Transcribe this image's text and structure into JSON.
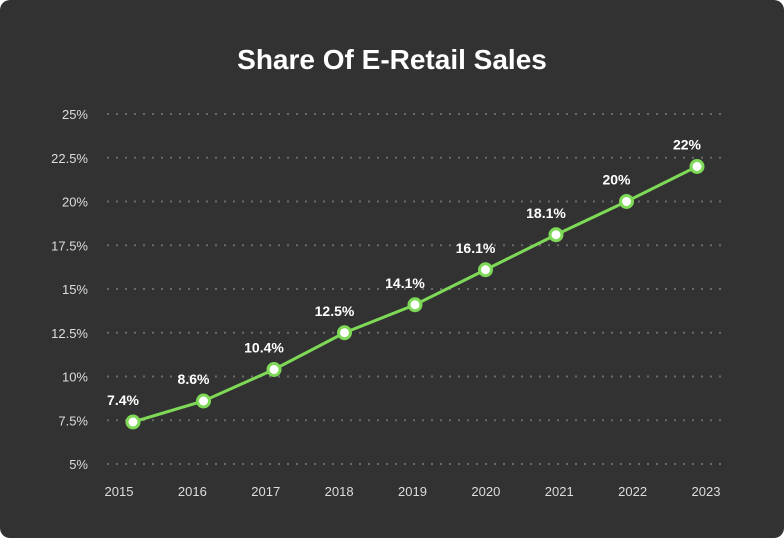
{
  "chart_data": {
    "type": "line",
    "title": "Share Of E-Retail Sales",
    "categories": [
      "2015",
      "2016",
      "2017",
      "2018",
      "2019",
      "2020",
      "2021",
      "2022",
      "2023"
    ],
    "values": [
      7.4,
      8.6,
      10.4,
      12.5,
      14.1,
      16.1,
      18.1,
      20,
      22
    ],
    "data_labels": [
      "7.4%",
      "8.6%",
      "10.4%",
      "12.5%",
      "14.1%",
      "16.1%",
      "18.1%",
      "20%",
      "22%"
    ],
    "ylim": [
      5,
      25
    ],
    "yticks": [
      5,
      7.5,
      10,
      12.5,
      15,
      17.5,
      20,
      22.5,
      25
    ],
    "ytick_labels": [
      "5%",
      "7.5%",
      "10%",
      "12.5%",
      "15%",
      "17.5%",
      "20%",
      "22.5%",
      "25%"
    ],
    "grid": "horizontal dotted",
    "colors": {
      "background": "#323232",
      "line": "#7ed957",
      "marker_fill": "#ffffff",
      "grid": "#6a6a6a"
    }
  }
}
